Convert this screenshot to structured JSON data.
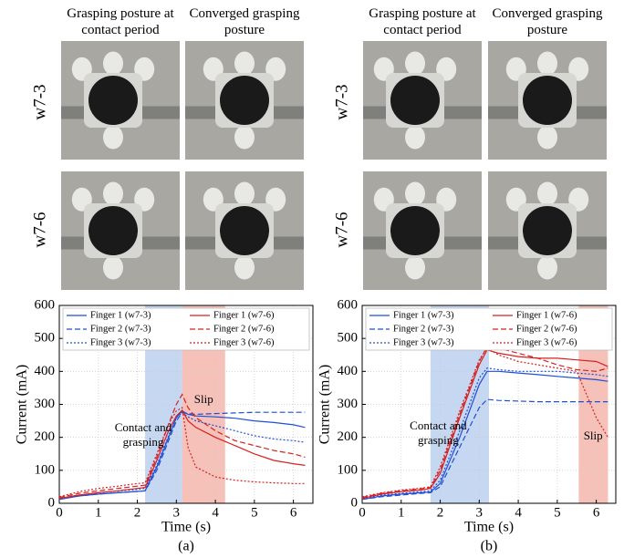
{
  "figure": {
    "panels": [
      {
        "caption": "(a)",
        "column_headers": [
          "Grasping posture at contact period",
          "Converged grasping posture"
        ],
        "row_labels": [
          "w7-3",
          "w7-6"
        ]
      },
      {
        "caption": "(b)",
        "column_headers": [
          "Grasping posture at contact period",
          "Converged grasping posture"
        ],
        "row_labels": [
          "w7-3",
          "w7-6"
        ]
      }
    ]
  },
  "chart_data": [
    {
      "type": "line",
      "xlabel": "Time (s)",
      "ylabel": "Current (mA)",
      "xlim": [
        0,
        6.5
      ],
      "ylim": [
        0,
        600
      ],
      "xticks": [
        0,
        1,
        2,
        3,
        4,
        5,
        6
      ],
      "yticks": [
        0,
        100,
        200,
        300,
        400,
        500,
        600
      ],
      "grid": true,
      "legend": "upper center",
      "regions": [
        {
          "start": 2.2,
          "end": 3.15,
          "color": "#bcd0f0"
        },
        {
          "start": 3.15,
          "end": 4.25,
          "color": "#f4b6ad"
        }
      ],
      "annotations": [
        "Contact and grasping",
        "Slip"
      ],
      "x": [
        0,
        0.5,
        1,
        1.5,
        2,
        2.2,
        2.5,
        2.8,
        3,
        3.15,
        3.3,
        3.5,
        4,
        4.5,
        5,
        5.5,
        6,
        6.3
      ],
      "series": [
        {
          "name": "Finger 1 (w7-3)",
          "color": "#1f4fd6",
          "dash": "solid",
          "values": [
            12,
            22,
            28,
            32,
            36,
            38,
            110,
            200,
            260,
            280,
            270,
            265,
            262,
            258,
            250,
            245,
            238,
            230
          ]
        },
        {
          "name": "Finger 2 (w7-3)",
          "color": "#1f4fd6",
          "dash": "dashed",
          "values": [
            12,
            22,
            28,
            32,
            36,
            38,
            100,
            190,
            250,
            275,
            272,
            270,
            272,
            274,
            276,
            276,
            276,
            276
          ]
        },
        {
          "name": "Finger 3 (w7-3)",
          "color": "#1f4fd6",
          "dash": "dotted",
          "values": [
            15,
            25,
            32,
            37,
            42,
            45,
            115,
            205,
            260,
            275,
            262,
            250,
            235,
            220,
            205,
            195,
            190,
            185
          ]
        },
        {
          "name": "Finger 1 (w7-6)",
          "color": "#d62020",
          "dash": "solid",
          "values": [
            15,
            25,
            32,
            38,
            45,
            48,
            130,
            220,
            265,
            282,
            250,
            230,
            200,
            175,
            150,
            130,
            120,
            115
          ]
        },
        {
          "name": "Finger 2 (w7-6)",
          "color": "#d62020",
          "dash": "dashed",
          "values": [
            18,
            30,
            38,
            45,
            52,
            55,
            140,
            240,
            300,
            330,
            290,
            260,
            220,
            190,
            175,
            160,
            150,
            140
          ]
        },
        {
          "name": "Finger 3 (w7-6)",
          "color": "#d62020",
          "dash": "dotted",
          "values": [
            20,
            35,
            45,
            52,
            60,
            62,
            150,
            240,
            280,
            290,
            170,
            110,
            80,
            70,
            65,
            62,
            60,
            60
          ]
        }
      ]
    },
    {
      "type": "line",
      "xlabel": "Time (s)",
      "ylabel": "Current (mA)",
      "xlim": [
        0,
        6.5
      ],
      "ylim": [
        0,
        600
      ],
      "xticks": [
        0,
        1,
        2,
        3,
        4,
        5,
        6
      ],
      "yticks": [
        0,
        100,
        200,
        300,
        400,
        500,
        600
      ],
      "grid": true,
      "legend": "upper center",
      "regions": [
        {
          "start": 1.75,
          "end": 3.25,
          "color": "#bcd0f0"
        },
        {
          "start": 5.55,
          "end": 6.3,
          "color": "#f4b6ad"
        }
      ],
      "annotations": [
        "Contact and grasping",
        "Slip"
      ],
      "x": [
        0,
        0.5,
        1,
        1.5,
        1.75,
        2,
        2.5,
        3,
        3.2,
        3.5,
        4,
        4.5,
        5,
        5.5,
        6,
        6.3
      ],
      "series": [
        {
          "name": "Finger 1 (w7-3)",
          "color": "#1f4fd6",
          "dash": "solid",
          "values": [
            12,
            22,
            28,
            32,
            34,
            60,
            200,
            360,
            400,
            400,
            395,
            390,
            385,
            380,
            375,
            370
          ]
        },
        {
          "name": "Finger 2 (w7-3)",
          "color": "#1f4fd6",
          "dash": "dashed",
          "values": [
            12,
            20,
            25,
            30,
            32,
            50,
            170,
            290,
            315,
            312,
            310,
            308,
            308,
            308,
            308,
            308
          ]
        },
        {
          "name": "Finger 3 (w7-3)",
          "color": "#1f4fd6",
          "dash": "dotted",
          "values": [
            15,
            25,
            30,
            35,
            38,
            70,
            220,
            380,
            410,
            405,
            400,
            400,
            400,
            395,
            390,
            385
          ]
        },
        {
          "name": "Finger 1 (w7-6)",
          "color": "#d62020",
          "dash": "solid",
          "values": [
            15,
            28,
            35,
            40,
            45,
            90,
            260,
            420,
            465,
            455,
            445,
            440,
            440,
            435,
            430,
            415
          ]
        },
        {
          "name": "Finger 2 (w7-6)",
          "color": "#d62020",
          "dash": "dashed",
          "values": [
            18,
            30,
            38,
            44,
            48,
            100,
            270,
            430,
            475,
            470,
            455,
            440,
            420,
            405,
            400,
            410
          ]
        },
        {
          "name": "Finger 3 (w7-6)",
          "color": "#d62020",
          "dash": "dotted",
          "values": [
            20,
            32,
            40,
            46,
            50,
            110,
            280,
            435,
            470,
            450,
            430,
            420,
            410,
            400,
            260,
            200
          ]
        }
      ]
    }
  ]
}
